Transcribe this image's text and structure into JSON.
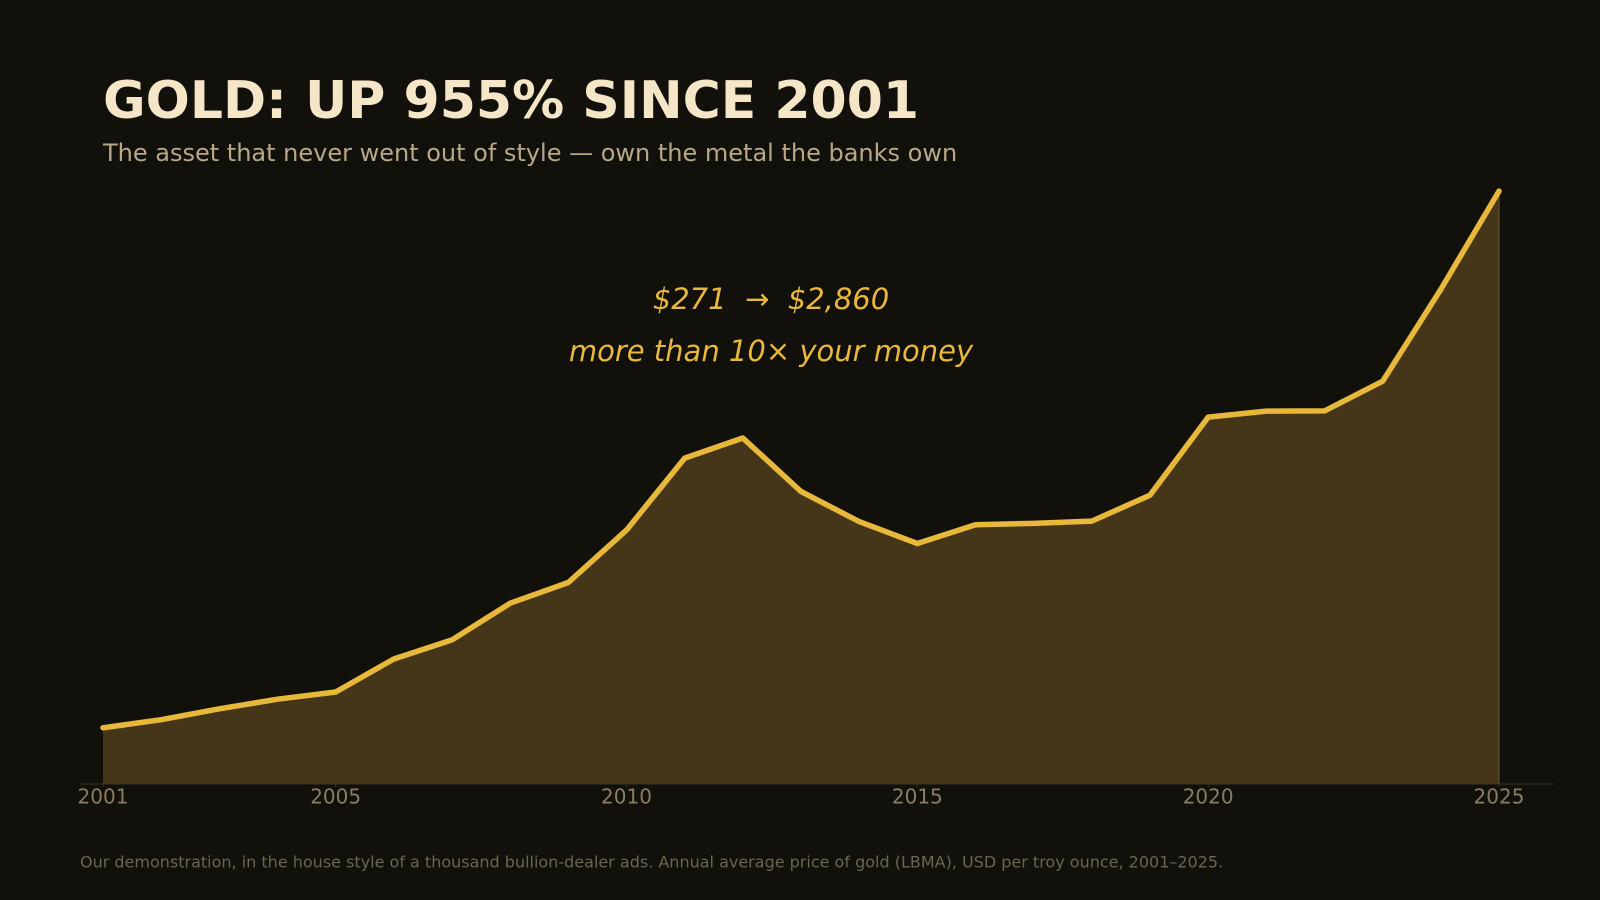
{
  "chart_data": {
    "type": "area",
    "title": "GOLD: UP 955% SINCE 2001",
    "subtitle": "The asset that never went out of style — own the metal the banks own",
    "annotations": [
      "$271  →  $2,860",
      "more than 10× your money"
    ],
    "note": "Our demonstration, in the house style of a thousand bullion-dealer ads. Annual average price of gold (LBMA), USD per troy ounce, 2001–2025.",
    "x": [
      2001,
      2002,
      2003,
      2004,
      2005,
      2006,
      2007,
      2008,
      2009,
      2010,
      2011,
      2012,
      2013,
      2014,
      2015,
      2016,
      2017,
      2018,
      2019,
      2020,
      2021,
      2022,
      2023,
      2024,
      2025
    ],
    "values": [
      271,
      310,
      363,
      409,
      444,
      603,
      695,
      872,
      972,
      1225,
      1572,
      1669,
      1411,
      1266,
      1160,
      1251,
      1257,
      1268,
      1393,
      1770,
      1799,
      1800,
      1943,
      2386,
      2860
    ],
    "color": "#e8b83a",
    "fill_color": "#45361a",
    "xlim": [
      2001,
      2025
    ],
    "xticks": [
      2001,
      2005,
      2010,
      2015,
      2020,
      2025
    ],
    "ylim": [
      0,
      3000
    ],
    "grid": false
  }
}
